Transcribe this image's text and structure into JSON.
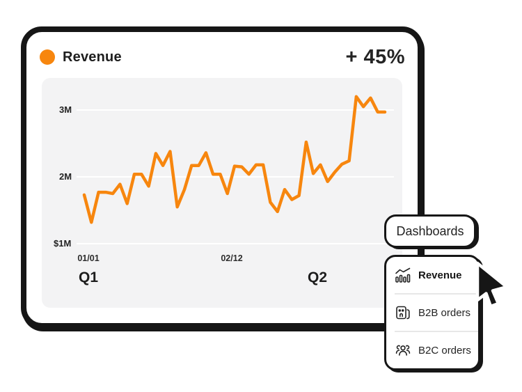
{
  "accent_color": "#F7860E",
  "card": {
    "title": "Revenue",
    "delta": "+ 45%"
  },
  "chart_data": {
    "type": "line",
    "title": "Revenue",
    "xlabel": "",
    "ylabel": "",
    "ylim": [
      1.1,
      3.45
    ],
    "grid": "horizontal-white",
    "legend": "none",
    "y_ticks": [
      {
        "label": "3M",
        "value": 3
      },
      {
        "label": "2M",
        "value": 2
      },
      {
        "label": "$1M",
        "value": 1
      }
    ],
    "x_ticks": [
      {
        "label": "01/01"
      },
      {
        "label": "02/12"
      }
    ],
    "quarter_labels": [
      "Q1",
      "Q2"
    ],
    "series": [
      {
        "name": "Revenue",
        "color": "#F7860E",
        "unit": "M",
        "values": [
          1.73,
          1.32,
          1.77,
          1.77,
          1.75,
          1.89,
          1.6,
          2.04,
          2.04,
          1.86,
          2.35,
          2.17,
          2.38,
          1.55,
          1.81,
          2.17,
          2.17,
          2.36,
          2.04,
          2.04,
          1.75,
          2.16,
          2.15,
          2.04,
          2.18,
          2.18,
          1.62,
          1.48,
          1.81,
          1.66,
          1.72,
          2.52,
          2.05,
          2.18,
          1.93,
          2.07,
          2.19,
          2.24,
          3.2,
          3.05,
          3.18,
          2.97,
          2.97
        ]
      }
    ]
  },
  "dropdown": {
    "trigger_label": "Dashboards",
    "items": [
      {
        "label": "Revenue",
        "icon": "trend-chart-icon",
        "selected": true
      },
      {
        "label": "B2B orders",
        "icon": "building-icon",
        "selected": false
      },
      {
        "label": "B2C orders",
        "icon": "people-group-icon",
        "selected": false
      }
    ]
  },
  "cursor": {
    "type": "pointer-arrow"
  }
}
